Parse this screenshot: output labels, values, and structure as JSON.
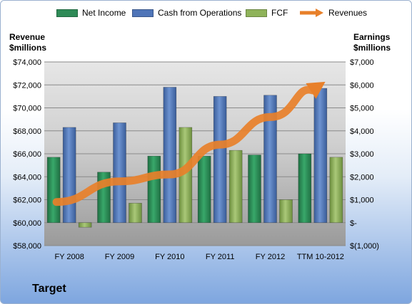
{
  "chart_data": {
    "type": "bar",
    "title": "",
    "categories": [
      "FY 2008",
      "FY 2009",
      "FY 2010",
      "FY 2011",
      "FY 2012",
      "TTM 10-2012"
    ],
    "series": [
      {
        "name": "Net Income",
        "axis": "right",
        "type": "bar",
        "color": "#2e8b57",
        "values": [
          2850,
          2200,
          2900,
          2900,
          2950,
          3000
        ]
      },
      {
        "name": "Cash from Operations",
        "axis": "right",
        "type": "bar",
        "color": "#4f75b8",
        "values": [
          4150,
          4350,
          5900,
          5500,
          5550,
          5850
        ]
      },
      {
        "name": "FCF",
        "axis": "right",
        "type": "bar",
        "color": "#8fb35a",
        "values": [
          -200,
          850,
          4150,
          3150,
          1000,
          2850
        ]
      },
      {
        "name": "Revenues",
        "axis": "left",
        "type": "line-arrow",
        "color": "#e8802a",
        "values": [
          61800,
          63600,
          64200,
          66800,
          69200,
          72000
        ]
      }
    ],
    "yleft": {
      "label_line1": "Revenue",
      "label_line2": "$millions",
      "ylim": [
        58000,
        74000
      ],
      "ticks": [
        "$58,000",
        "$60,000",
        "$62,000",
        "$64,000",
        "$66,000",
        "$68,000",
        "$70,000",
        "$72,000",
        "$74,000"
      ]
    },
    "yright": {
      "label_line1": "Earnings",
      "label_line2": "$millions",
      "ylim": [
        -1000,
        7000
      ],
      "ticks": [
        "$(1,000)",
        "$-",
        "$1,000",
        "$2,000",
        "$3,000",
        "$4,000",
        "$5,000",
        "$6,000",
        "$7,000"
      ]
    },
    "grid": true,
    "legend_position": "top"
  },
  "company": "Target"
}
